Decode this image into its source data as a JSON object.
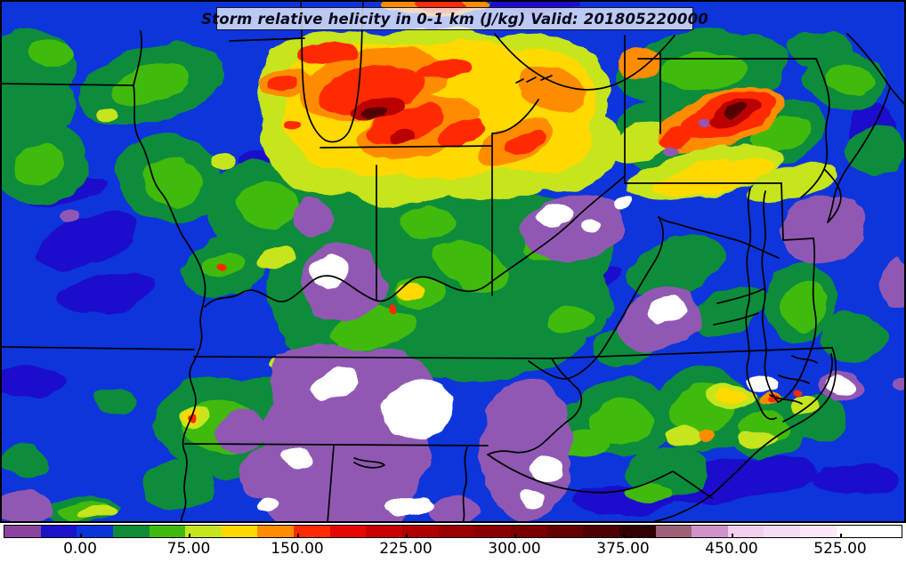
{
  "title": {
    "text": "Storm relative helicity in 0-1 km (J/kg) Valid: 201805220000"
  },
  "colorbar": {
    "orientation": "horizontal",
    "tick_labels": [
      "0.00",
      "75.00",
      "150.00",
      "225.00",
      "300.00",
      "375.00",
      "450.00",
      "525.00"
    ],
    "segment_colors": [
      "#8c43a0",
      "#1c12cc",
      "#0a35db",
      "#0d8c3a",
      "#3fba10",
      "#c6e51c",
      "#ffd900",
      "#ff8c00",
      "#ff2a00",
      "#e60800",
      "#c90000",
      "#b00000",
      "#9c0000",
      "#8a0000",
      "#780000",
      "#640000",
      "#4e0000",
      "#330000",
      "#9c6079",
      "#cf93c8",
      "#f3cfee",
      "#f7dcf5",
      "#fbe9f9",
      "#ffffff"
    ]
  },
  "chart_data": {
    "type": "heatmap",
    "title": "Storm relative helicity in 0-1 km (J/kg) Valid: 201805220000",
    "variable": "Storm relative helicity in 0-1 km",
    "units": "J/kg",
    "valid_time": "201805220000",
    "colorbar_ticks": [
      0,
      75,
      150,
      225,
      300,
      375,
      450,
      525
    ],
    "colorbar_approx_range": [
      -50,
      550
    ],
    "legend_position": "bottom",
    "region": "Ohio Valley / Mid-Atlantic / Southeast United States",
    "depicted_pattern": "Maximum helicity band (orange/red/dark-red, >150 J/kg) across northern Illinois, Indiana, Ohio and northwest Pennsylvania; low/negative values (purple with white < range minimum) over Tennessee, Alabama, Georgia and offshore of the Mid-Atlantic coast; broad blue background (0-25 J/kg) with scattered green patches (25-75 J/kg)."
  },
  "palette": {
    "blue": "#0a35db",
    "dblue": "#1b10cc",
    "dgreen": "#0d8c3a",
    "green": "#3fba10",
    "ygreen": "#c6e51c",
    "yellow": "#ffd900",
    "orange": "#ff8c00",
    "orred": "#ff2a00",
    "red": "#e60800",
    "dred": "#bb0000",
    "vdred": "#550000",
    "purple": "#9159b3",
    "white": "#ffffff",
    "border": "#000000"
  }
}
